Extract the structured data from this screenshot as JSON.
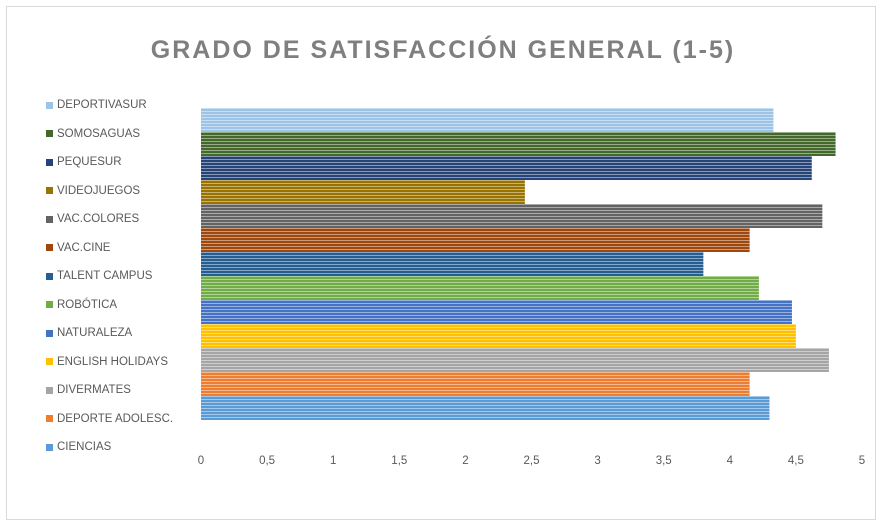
{
  "chart_data": {
    "type": "bar",
    "orientation": "horizontal",
    "title": "GRADO DE SATISFACCIÓN GENERAL (1-5)",
    "xlim": [
      0,
      5
    ],
    "x_ticks": [
      "0",
      "0,5",
      "1",
      "1,5",
      "2",
      "2,5",
      "3",
      "3,5",
      "4",
      "4,5",
      "5"
    ],
    "grid": false,
    "legend_position": "left",
    "categories": [
      "CIENCIAS",
      "DEPORTE ADOLESC.",
      "DIVERMATES",
      "ENGLISH HOLIDAYS",
      "NATURALEZA",
      "ROBÓTICA",
      "TALENT CAMPUS",
      "VAC.CINE",
      "VAC.COLORES",
      "VIDEOJUEGOS",
      "PEQUESUR",
      "SOMOSAGUAS",
      "DEPORTIVASUR"
    ],
    "values": [
      4.3,
      4.15,
      4.75,
      4.5,
      4.47,
      4.22,
      3.8,
      4.15,
      4.7,
      2.45,
      4.62,
      4.8,
      4.33
    ],
    "colors": [
      "#5b9bd5",
      "#ed7d31",
      "#a5a5a5",
      "#ffc000",
      "#4472c4",
      "#70ad47",
      "#255e91",
      "#9e480e",
      "#636363",
      "#997300",
      "#264478",
      "#43682b",
      "#9dc3e6"
    ]
  }
}
